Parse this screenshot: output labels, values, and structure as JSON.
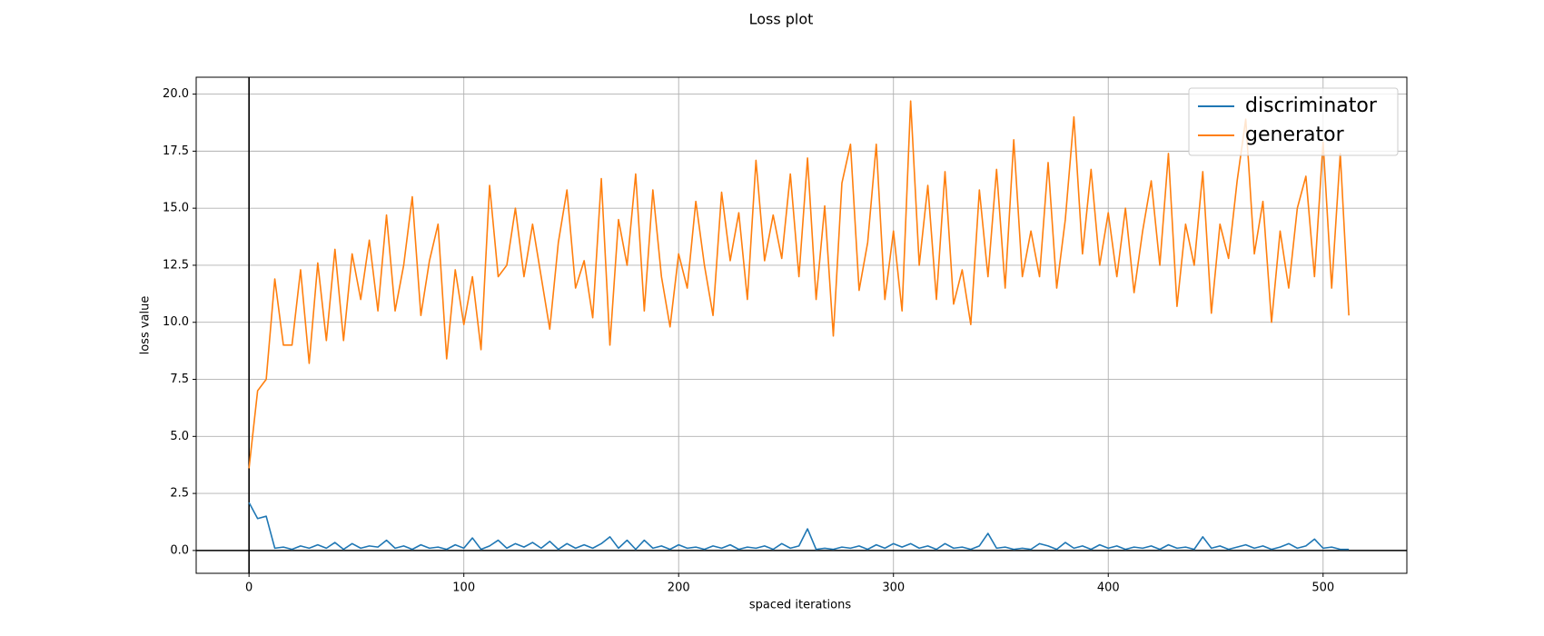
{
  "chart_data": {
    "type": "line",
    "title": "Loss plot",
    "x_label": "spaced iterations",
    "y_label": "loss value",
    "x": [
      0,
      4,
      8,
      12,
      16,
      20,
      24,
      28,
      32,
      36,
      40,
      44,
      48,
      52,
      56,
      60,
      64,
      68,
      72,
      76,
      80,
      84,
      88,
      92,
      96,
      100,
      104,
      108,
      112,
      116,
      120,
      124,
      128,
      132,
      136,
      140,
      144,
      148,
      152,
      156,
      160,
      164,
      168,
      172,
      176,
      180,
      184,
      188,
      192,
      196,
      200,
      204,
      208,
      212,
      216,
      220,
      224,
      228,
      232,
      236,
      240,
      244,
      248,
      252,
      256,
      260,
      264,
      268,
      272,
      276,
      280,
      284,
      288,
      292,
      296,
      300,
      304,
      308,
      312,
      316,
      320,
      324,
      328,
      332,
      336,
      340,
      344,
      348,
      352,
      356,
      360,
      364,
      368,
      372,
      376,
      380,
      384,
      388,
      392,
      396,
      400,
      404,
      408,
      412,
      416,
      420,
      424,
      428,
      432,
      436,
      440,
      444,
      448,
      452,
      456,
      460,
      464,
      468,
      472,
      476,
      480,
      484,
      488,
      492,
      496,
      500,
      504,
      508,
      512
    ],
    "series": [
      {
        "name": "discriminator",
        "color": "#1f77b4",
        "values": [
          2.1,
          1.4,
          1.5,
          0.1,
          0.15,
          0.05,
          0.2,
          0.1,
          0.25,
          0.1,
          0.35,
          0.05,
          0.3,
          0.1,
          0.2,
          0.15,
          0.45,
          0.1,
          0.2,
          0.05,
          0.25,
          0.1,
          0.15,
          0.05,
          0.25,
          0.1,
          0.55,
          0.05,
          0.2,
          0.45,
          0.1,
          0.3,
          0.15,
          0.35,
          0.1,
          0.4,
          0.05,
          0.3,
          0.1,
          0.25,
          0.1,
          0.3,
          0.6,
          0.1,
          0.45,
          0.05,
          0.45,
          0.1,
          0.2,
          0.05,
          0.25,
          0.1,
          0.15,
          0.05,
          0.2,
          0.1,
          0.25,
          0.05,
          0.15,
          0.1,
          0.2,
          0.05,
          0.3,
          0.1,
          0.2,
          0.95,
          0.05,
          0.1,
          0.05,
          0.15,
          0.1,
          0.2,
          0.05,
          0.25,
          0.1,
          0.3,
          0.15,
          0.3,
          0.1,
          0.2,
          0.05,
          0.3,
          0.1,
          0.15,
          0.05,
          0.2,
          0.75,
          0.1,
          0.15,
          0.05,
          0.1,
          0.05,
          0.3,
          0.2,
          0.05,
          0.35,
          0.1,
          0.2,
          0.05,
          0.25,
          0.1,
          0.2,
          0.05,
          0.15,
          0.1,
          0.2,
          0.05,
          0.25,
          0.1,
          0.15,
          0.05,
          0.6,
          0.1,
          0.2,
          0.05,
          0.15,
          0.25,
          0.1,
          0.2,
          0.05,
          0.15,
          0.3,
          0.1,
          0.2,
          0.5,
          0.1,
          0.15,
          0.05,
          0.05
        ]
      },
      {
        "name": "generator",
        "color": "#ff7f0e",
        "values": [
          3.6,
          7.0,
          7.5,
          11.9,
          9.0,
          9.0,
          12.3,
          8.2,
          12.6,
          9.2,
          13.2,
          9.2,
          13.0,
          11.0,
          13.6,
          10.5,
          14.7,
          10.5,
          12.5,
          15.5,
          10.3,
          12.7,
          14.3,
          8.4,
          12.3,
          9.9,
          12.0,
          8.8,
          16.0,
          12.0,
          12.5,
          15.0,
          12.0,
          14.3,
          12.0,
          9.7,
          13.5,
          15.8,
          11.5,
          12.7,
          10.2,
          16.3,
          9.0,
          14.5,
          12.5,
          16.5,
          10.5,
          15.8,
          12.0,
          9.8,
          13.0,
          11.5,
          15.3,
          12.5,
          10.3,
          15.7,
          12.7,
          14.8,
          11.0,
          17.1,
          12.7,
          14.7,
          12.8,
          16.5,
          12.0,
          17.2,
          11.0,
          15.1,
          9.4,
          16.1,
          17.8,
          11.4,
          13.5,
          17.8,
          11.0,
          14.0,
          10.5,
          19.7,
          12.5,
          16.0,
          11.0,
          16.6,
          10.8,
          12.3,
          9.9,
          15.8,
          12.0,
          16.7,
          11.5,
          18.0,
          12.0,
          14.0,
          12.0,
          17.0,
          11.5,
          14.5,
          19.0,
          13.0,
          16.7,
          12.5,
          14.8,
          12.0,
          15.0,
          11.3,
          14.0,
          16.2,
          12.5,
          17.4,
          10.7,
          14.3,
          12.5,
          16.6,
          10.4,
          14.3,
          12.8,
          16.2,
          18.9,
          13.0,
          15.3,
          10.0,
          14.0,
          11.5,
          15.0,
          16.4,
          12.0,
          17.9,
          11.5,
          17.4,
          10.3
        ]
      }
    ],
    "xlim": [
      -24.6,
      539
    ],
    "ylim": [
      -1.0,
      20.74
    ],
    "xticks": [
      0,
      100,
      200,
      300,
      400,
      500
    ],
    "yticks": [
      {
        "value": 0,
        "label": "0.0"
      },
      {
        "value": 2.5,
        "label": "2.5"
      },
      {
        "value": 5,
        "label": "5.0"
      },
      {
        "value": 7.5,
        "label": "7.5"
      },
      {
        "value": 10,
        "label": "10.0"
      },
      {
        "value": 12.5,
        "label": "12.5"
      },
      {
        "value": 15,
        "label": "15.0"
      },
      {
        "value": 17.5,
        "label": "17.5"
      },
      {
        "value": 20,
        "label": "20.0"
      }
    ],
    "grid": true,
    "zero_lines": true,
    "legend": "upper right"
  }
}
